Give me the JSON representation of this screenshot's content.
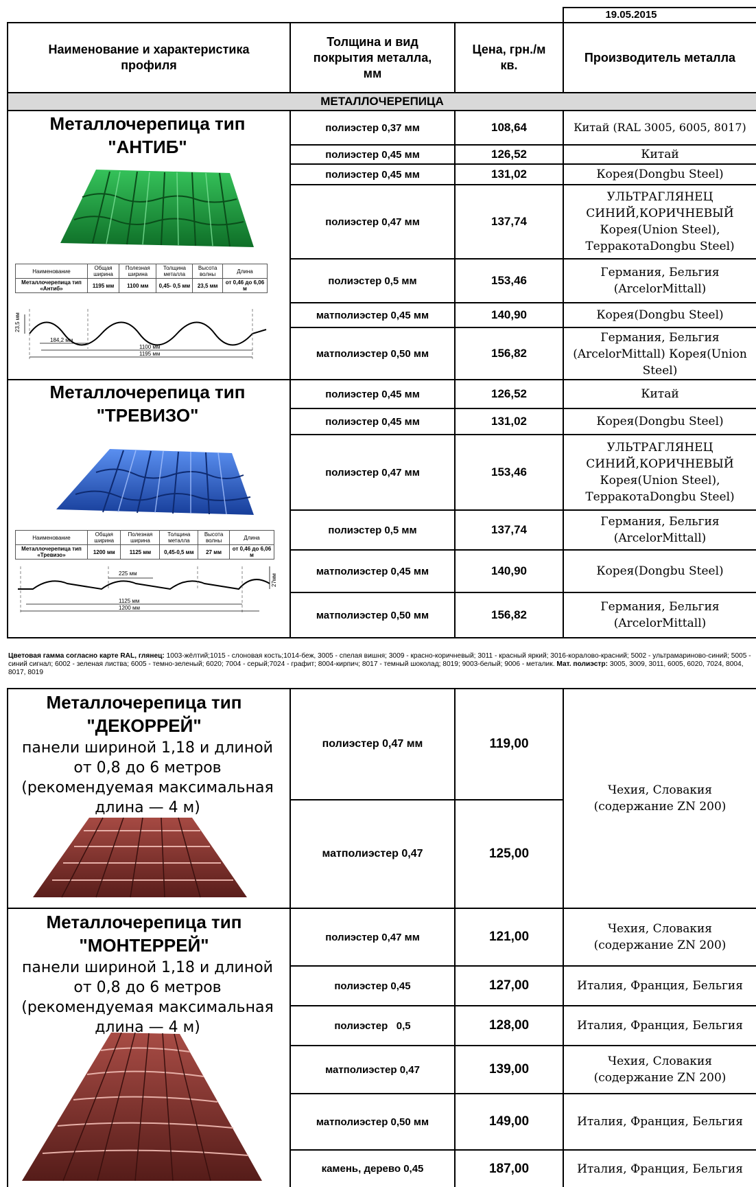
{
  "date": "19.05.2015",
  "headers": {
    "name": "Наименование и характеристика профиля",
    "thickness": "Толщина и вид покрытия металла, мм",
    "price": "Цена, грн./м кв.",
    "maker": "Производитель металла"
  },
  "section_title": "МЕТАЛЛОЧЕРЕПИЦА",
  "products": [
    {
      "title": "Металлочерепица тип \"АНТИБ\"",
      "spec_headers": [
        "Наименование",
        "Общая ширина",
        "Полезная ширина",
        "Толщина металла",
        "Высота волны",
        "Длина"
      ],
      "spec_values": [
        "Металлочерепица тип «Антиб»",
        "1195 мм",
        "1100 мм",
        "0,45- 0,5 мм",
        "23,5 мм",
        "от 0,46 до 6,06 м"
      ],
      "dims": [
        "23,5 мм",
        "184,2 мм",
        "1100 мм",
        "1195 мм"
      ],
      "rows": [
        {
          "thickness": "полиэстер 0,37 мм",
          "price": "108,64",
          "maker": "Китай (RAL 3005, 6005, 8017)"
        },
        {
          "thickness": "полиэстер 0,45 мм",
          "price": "126,52",
          "maker": "Китай"
        },
        {
          "thickness": "полиэстер 0,45 мм",
          "price": "131,02",
          "maker": "Корея(Dongbu Steel)"
        },
        {
          "thickness": "полиэстер 0,47 мм",
          "price": "137,74",
          "maker": "УЛЬТРАГЛЯНЕЦ СИНИЙ,КОРИЧНЕВЫЙ Корея(Union Steel), ТерракотаDongbu Steel)"
        },
        {
          "thickness": "полиэстер 0,5 мм",
          "price": "153,46",
          "maker": "Германия, Бельгия (ArcelorMittall)"
        },
        {
          "thickness": "матполиэстер 0,45 мм",
          "price": "140,90",
          "maker": "Корея(Dongbu Steel)"
        },
        {
          "thickness": "матполиэстер 0,50 мм",
          "price": "156,82",
          "maker": "Германия, Бельгия (ArcelorMittall) Корея(Union Steel)"
        }
      ]
    },
    {
      "title": "Металлочерепица тип \"ТРЕВИЗО\"",
      "spec_headers": [
        "Наименование",
        "Общая ширина",
        "Полезная ширина",
        "Толщина металла",
        "Высота волны",
        "Длина"
      ],
      "spec_values": [
        "Металлочерепица тип «Тревизо»",
        "1200 мм",
        "1125 мм",
        "0,45-0,5 мм",
        "27 мм",
        "от 0,46 до 6,06 м"
      ],
      "dims": [
        "225 мм",
        "27мм",
        "1125 мм",
        "1200 мм"
      ],
      "rows": [
        {
          "thickness": "полиэстер 0,45 мм",
          "price": "126,52",
          "maker": "Китай"
        },
        {
          "thickness": "полиэстер 0,45 мм",
          "price": "131,02",
          "maker": "Корея(Dongbu Steel)"
        },
        {
          "thickness": "полиэстер 0,47 мм",
          "price": "153,46",
          "maker": "УЛЬТРАГЛЯНЕЦ СИНИЙ,КОРИЧНЕВЫЙ Корея(Union Steel), ТерракотаDongbu Steel)"
        },
        {
          "thickness": "полиэстер 0,5 мм",
          "price": "137,74",
          "maker": "Германия, Бельгия (ArcelorMittall)"
        },
        {
          "thickness": "матполиэстер 0,45 мм",
          "price": "140,90",
          "maker": "Корея(Dongbu Steel)"
        },
        {
          "thickness": "матполиэстер 0,50 мм",
          "price": "156,82",
          "maker": "Германия, Бельгия (ArcelorMittall)"
        }
      ]
    },
    {
      "title": "Металлочерепица тип \"ДЕКОРРЕЙ\"",
      "description": "панели шириной 1,18 и длиной от 0,8 до 6 метров (рекомендуемая максимальная длина — 4 м)",
      "maker_merged": "Чехия, Словакия (содержание  ZN 200)",
      "rows": [
        {
          "thickness": "полиэстер 0,47 мм",
          "price": "119,00"
        },
        {
          "thickness": "матполиэстер 0,47",
          "price": "125,00"
        }
      ]
    },
    {
      "title": "Металлочерепица тип \"МОНТЕРРЕЙ\"",
      "description": "панели шириной 1,18 и длиной от 0,8 до 6 метров (рекомендуемая максимальная длина — 4 м)",
      "rows": [
        {
          "thickness": "полиэстер 0,47 мм",
          "price": "121,00",
          "maker": "Чехия, Словакия (содержание  ZN 200)"
        },
        {
          "thickness": "полиэстер 0,45",
          "price": "127,00",
          "maker": "Италия, Франция, Бельгия"
        },
        {
          "thickness": "полиэстер   0,5",
          "price": "128,00",
          "maker": "Италия, Франция, Бельгия"
        },
        {
          "thickness": "матполиэстер 0,47",
          "price": "139,00",
          "maker": "Чехия, Словакия (содержание  ZN 200)"
        },
        {
          "thickness": "матполиэстер 0,50 мм",
          "price": "149,00",
          "maker": "Италия, Франция, Бельгия"
        },
        {
          "thickness": "камень, дерево 0,45",
          "price": "187,00",
          "maker": "Италия, Франция, Бельгия"
        }
      ]
    }
  ],
  "ral_note": {
    "label_gloss": "Цветовая гамма согласно карте RAL,  глянец:",
    "gloss_colors": " 1003-жёлтий;1015 - слоновая кость;1014-беж, 3005 - спелая вишня; 3009 - красно-коричневый; 3011 - красный яркий; 3016-коралово-красний; 5002 - ультрамариново-синий; 5005 - синий сигнал; 6002 - зеленая листва; 6005 - темно-зеленый; 6020; 7004 - серый;7024 - графит; 8004-кирпич; 8017 - темный шоколад; 8019; 9003-белый; 9006 - металик. ",
    "label_matte": "Мат. полиэстр:",
    "matte_colors": " 3005, 3009, 3011, 6005, 6020, 7024, 8004, 8017, 8019"
  },
  "colors": {
    "section_bg": "#d9d9d9",
    "antib_tile": "#1f9a3c",
    "treviso_tile": "#2a5fc8",
    "brown_tile": "#7a2e2a"
  }
}
